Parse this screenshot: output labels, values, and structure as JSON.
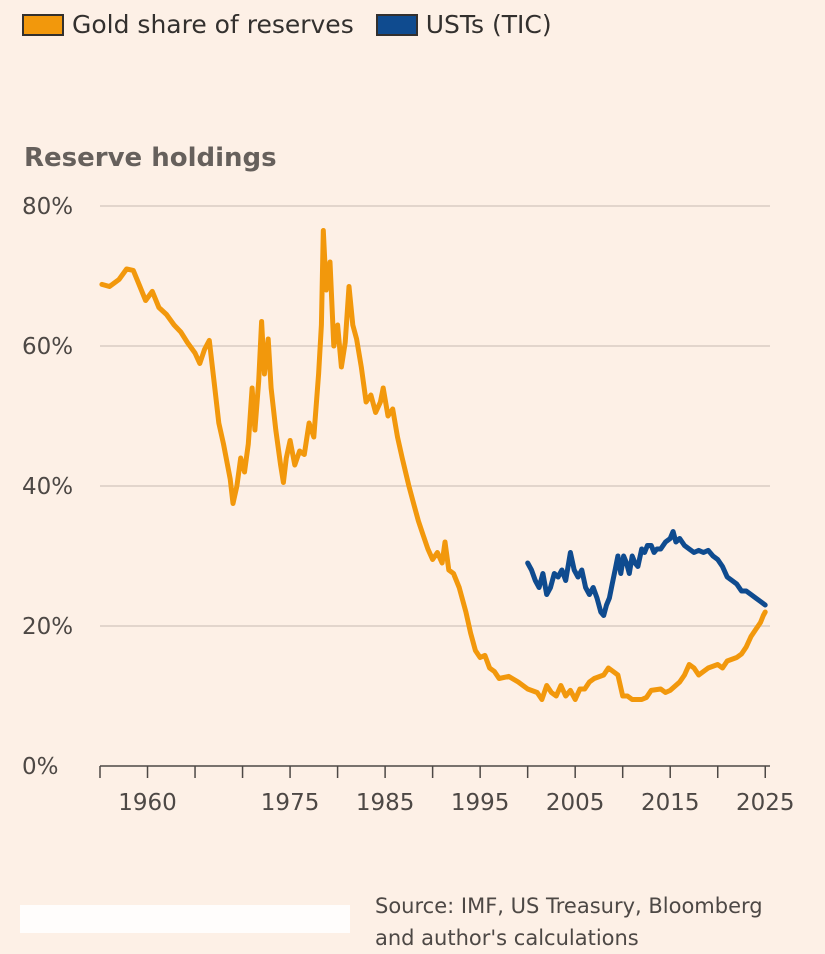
{
  "legend": [
    {
      "label": "Gold share of reserves",
      "color": "#f2980c"
    },
    {
      "label": "USTs (TIC)",
      "color": "#0f4b8f"
    }
  ],
  "colors": {
    "grid": "#d9ccc3",
    "axis": "#4d4845",
    "background": "#fdf0e6"
  },
  "source_line1": "Source: IMF, US Treasury, Bloomberg",
  "source_line2": "and author's calculations",
  "chart_data": {
    "type": "line",
    "title": "Reserve holdings",
    "xlabel": "",
    "ylabel": "Reserve holdings",
    "xlim": [
      1955,
      2025.5
    ],
    "ylim": [
      0,
      80
    ],
    "yticks": [
      0,
      20,
      40,
      60,
      80
    ],
    "ytick_labels": [
      "0%",
      "20%",
      "40%",
      "60%",
      "80%"
    ],
    "xticks_minor": [
      1955,
      1960,
      1965,
      1970,
      1975,
      1980,
      1985,
      1990,
      1995,
      2000,
      2005,
      2010,
      2015,
      2020,
      2025
    ],
    "xtick_labels": [
      {
        "year": 1960,
        "label": "1960"
      },
      {
        "year": 1975,
        "label": "1975"
      },
      {
        "year": 1985,
        "label": "1985"
      },
      {
        "year": 1995,
        "label": "1995"
      },
      {
        "year": 2005,
        "label": "2005"
      },
      {
        "year": 2015,
        "label": "2015"
      },
      {
        "year": 2025,
        "label": "2025"
      }
    ],
    "series": [
      {
        "name": "Gold share of reserves",
        "color": "#f2980c",
        "points": [
          [
            1955.2,
            68.8
          ],
          [
            1956,
            68.5
          ],
          [
            1957,
            69.5
          ],
          [
            1957.8,
            71
          ],
          [
            1958.5,
            70.8
          ],
          [
            1959.2,
            68.5
          ],
          [
            1959.8,
            66.5
          ],
          [
            1960.5,
            67.8
          ],
          [
            1961.2,
            65.5
          ],
          [
            1962,
            64.5
          ],
          [
            1962.8,
            63
          ],
          [
            1963.5,
            62
          ],
          [
            1964.2,
            60.5
          ],
          [
            1965,
            59
          ],
          [
            1965.5,
            57.5
          ],
          [
            1966,
            59.5
          ],
          [
            1966.5,
            60.8
          ],
          [
            1967,
            55
          ],
          [
            1967.5,
            49
          ],
          [
            1968,
            46
          ],
          [
            1968.7,
            41
          ],
          [
            1969,
            37.5
          ],
          [
            1969.4,
            40
          ],
          [
            1969.8,
            44
          ],
          [
            1970.2,
            42
          ],
          [
            1970.6,
            46
          ],
          [
            1971,
            54
          ],
          [
            1971.3,
            48
          ],
          [
            1971.7,
            55
          ],
          [
            1972,
            63.5
          ],
          [
            1972.3,
            56
          ],
          [
            1972.7,
            61
          ],
          [
            1973,
            54
          ],
          [
            1973.5,
            48
          ],
          [
            1974,
            43
          ],
          [
            1974.3,
            40.5
          ],
          [
            1974.6,
            44
          ],
          [
            1975,
            46.5
          ],
          [
            1975.5,
            43
          ],
          [
            1976,
            45
          ],
          [
            1976.5,
            44.5
          ],
          [
            1977,
            49
          ],
          [
            1977.5,
            47
          ],
          [
            1978,
            56
          ],
          [
            1978.3,
            63
          ],
          [
            1978.5,
            76.5
          ],
          [
            1978.8,
            68
          ],
          [
            1979.2,
            72
          ],
          [
            1979.6,
            60
          ],
          [
            1980,
            63
          ],
          [
            1980.4,
            57
          ],
          [
            1980.8,
            60.5
          ],
          [
            1981.2,
            68.5
          ],
          [
            1981.6,
            63
          ],
          [
            1982,
            61
          ],
          [
            1982.5,
            57
          ],
          [
            1983,
            52
          ],
          [
            1983.5,
            53
          ],
          [
            1984,
            50.5
          ],
          [
            1984.5,
            52
          ],
          [
            1984.8,
            54
          ],
          [
            1985.3,
            50
          ],
          [
            1985.8,
            51
          ],
          [
            1986.3,
            47
          ],
          [
            1986.8,
            44
          ],
          [
            1987.5,
            40
          ],
          [
            1988,
            37.5
          ],
          [
            1988.5,
            35
          ],
          [
            1989,
            33
          ],
          [
            1989.5,
            31
          ],
          [
            1990,
            29.5
          ],
          [
            1990.5,
            30.5
          ],
          [
            1991,
            29
          ],
          [
            1991.3,
            32
          ],
          [
            1991.7,
            28
          ],
          [
            1992.2,
            27.5
          ],
          [
            1992.8,
            25.5
          ],
          [
            1993.5,
            22
          ],
          [
            1994,
            19
          ],
          [
            1994.5,
            16.5
          ],
          [
            1995,
            15.5
          ],
          [
            1995.5,
            15.8
          ],
          [
            1996,
            14
          ],
          [
            1996.5,
            13.5
          ],
          [
            1997,
            12.5
          ],
          [
            1998,
            12.8
          ],
          [
            1999,
            12
          ],
          [
            2000,
            11
          ],
          [
            2001,
            10.5
          ],
          [
            2001.5,
            9.5
          ],
          [
            2002,
            11.5
          ],
          [
            2002.5,
            10.5
          ],
          [
            2003,
            10
          ],
          [
            2003.5,
            11.5
          ],
          [
            2004,
            10
          ],
          [
            2004.5,
            10.8
          ],
          [
            2005,
            9.5
          ],
          [
            2005.5,
            11
          ],
          [
            2006,
            11
          ],
          [
            2006.5,
            12
          ],
          [
            2007,
            12.5
          ],
          [
            2008,
            13
          ],
          [
            2008.5,
            14
          ],
          [
            2009,
            13.5
          ],
          [
            2009.5,
            13
          ],
          [
            2010,
            10
          ],
          [
            2010.5,
            10
          ],
          [
            2011,
            9.5
          ],
          [
            2012,
            9.5
          ],
          [
            2012.5,
            9.8
          ],
          [
            2013,
            10.8
          ],
          [
            2014,
            11
          ],
          [
            2014.5,
            10.5
          ],
          [
            2015,
            10.8
          ],
          [
            2016,
            12
          ],
          [
            2016.5,
            13
          ],
          [
            2017,
            14.5
          ],
          [
            2017.5,
            14
          ],
          [
            2018,
            13
          ],
          [
            2019,
            14
          ],
          [
            2020,
            14.5
          ],
          [
            2020.5,
            14
          ],
          [
            2021,
            15
          ],
          [
            2022,
            15.5
          ],
          [
            2022.5,
            16
          ],
          [
            2023,
            17
          ],
          [
            2023.5,
            18.5
          ],
          [
            2024,
            19.5
          ],
          [
            2024.5,
            20.5
          ],
          [
            2024.8,
            21.5
          ],
          [
            2025,
            22
          ]
        ]
      },
      {
        "name": "USTs (TIC)",
        "color": "#0f4b8f",
        "points": [
          [
            2000,
            29
          ],
          [
            2000.4,
            28
          ],
          [
            2000.8,
            26.5
          ],
          [
            2001.2,
            25.5
          ],
          [
            2001.6,
            27.5
          ],
          [
            2002,
            24.5
          ],
          [
            2002.4,
            25.5
          ],
          [
            2002.8,
            27.5
          ],
          [
            2003.2,
            27
          ],
          [
            2003.6,
            28
          ],
          [
            2004,
            26.5
          ],
          [
            2004.5,
            30.5
          ],
          [
            2004.9,
            28
          ],
          [
            2005.3,
            27
          ],
          [
            2005.7,
            28
          ],
          [
            2006.1,
            25.5
          ],
          [
            2006.5,
            24.5
          ],
          [
            2006.9,
            25.5
          ],
          [
            2007.3,
            24
          ],
          [
            2007.7,
            22
          ],
          [
            2008,
            21.5
          ],
          [
            2008.3,
            23
          ],
          [
            2008.6,
            24
          ],
          [
            2008.9,
            26
          ],
          [
            2009.2,
            28
          ],
          [
            2009.5,
            30
          ],
          [
            2009.8,
            27.5
          ],
          [
            2010.1,
            30
          ],
          [
            2010.4,
            29
          ],
          [
            2010.7,
            27.5
          ],
          [
            2011,
            30
          ],
          [
            2011.3,
            29
          ],
          [
            2011.6,
            28.5
          ],
          [
            2012,
            31
          ],
          [
            2012.3,
            30.5
          ],
          [
            2012.6,
            31.5
          ],
          [
            2013,
            31.5
          ],
          [
            2013.3,
            30.5
          ],
          [
            2013.6,
            31
          ],
          [
            2014,
            31
          ],
          [
            2014.5,
            32
          ],
          [
            2015,
            32.5
          ],
          [
            2015.3,
            33.5
          ],
          [
            2015.6,
            32
          ],
          [
            2016,
            32.5
          ],
          [
            2016.5,
            31.5
          ],
          [
            2017,
            31
          ],
          [
            2017.5,
            30.5
          ],
          [
            2018,
            30.8
          ],
          [
            2018.5,
            30.5
          ],
          [
            2019,
            30.8
          ],
          [
            2019.5,
            30
          ],
          [
            2020,
            29.5
          ],
          [
            2020.5,
            28.5
          ],
          [
            2021,
            27
          ],
          [
            2021.5,
            26.5
          ],
          [
            2022,
            26
          ],
          [
            2022.5,
            25
          ],
          [
            2023,
            25
          ],
          [
            2023.5,
            24.5
          ],
          [
            2024,
            24
          ],
          [
            2024.5,
            23.5
          ],
          [
            2025,
            23
          ]
        ]
      }
    ]
  }
}
